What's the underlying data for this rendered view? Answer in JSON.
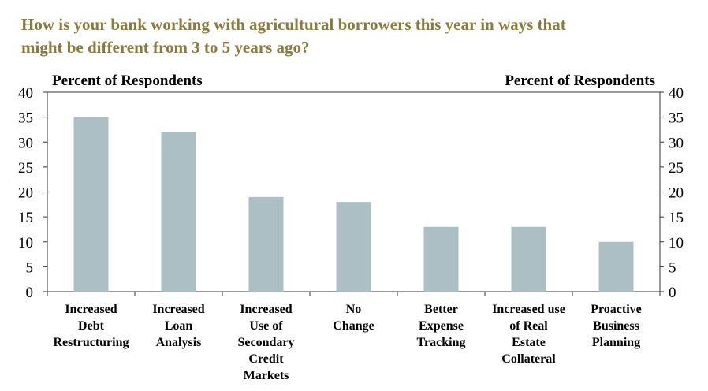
{
  "chart_data": {
    "type": "bar",
    "title_lines": [
      "How is your bank working with agricultural borrowers this year in ways that",
      "might be different from 3 to 5 years ago?"
    ],
    "ylabel_left": "Percent of Respondents",
    "ylabel_right": "Percent of Respondents",
    "ylim": [
      0,
      40
    ],
    "yticks": [
      "0",
      "5",
      "10",
      "15",
      "20",
      "25",
      "30",
      "35",
      "40"
    ],
    "categories": [
      [
        "Increased",
        "Debt",
        "Restructuring"
      ],
      [
        "Increased",
        "Loan",
        "Analysis"
      ],
      [
        "Increased",
        "Use of",
        "Secondary",
        "Credit",
        "Markets"
      ],
      [
        "No",
        "Change"
      ],
      [
        "Better",
        "Expense",
        "Tracking"
      ],
      [
        "Increased use",
        "of Real",
        "Estate",
        "Collateral"
      ],
      [
        "Proactive",
        "Business",
        "Planning"
      ]
    ],
    "values": [
      35,
      32,
      19,
      18,
      13,
      13,
      10
    ],
    "bar_color": "#abbfc4",
    "title_color": "#8a7a3c",
    "grid": false
  }
}
